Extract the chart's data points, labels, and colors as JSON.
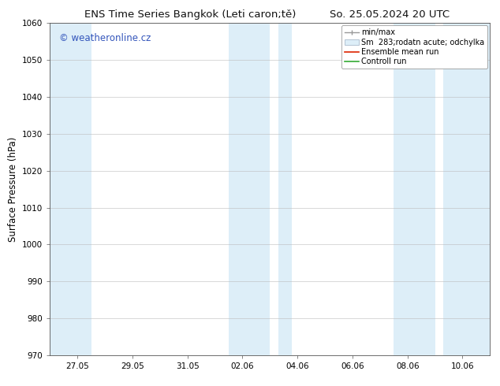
{
  "title_left": "ENS Time Series Bangkok (Leti caron;tě)",
  "title_right": "So. 25.05.2024 20 UTC",
  "ylabel": "Surface Pressure (hPa)",
  "ylim": [
    970,
    1060
  ],
  "yticks": [
    970,
    980,
    990,
    1000,
    1010,
    1020,
    1030,
    1040,
    1050,
    1060
  ],
  "xtick_labels": [
    "27.05",
    "29.05",
    "31.05",
    "02.06",
    "04.06",
    "06.06",
    "08.06",
    "10.06"
  ],
  "xtick_positions": [
    1,
    3,
    5,
    7,
    9,
    11,
    13,
    15
  ],
  "xmin": 0,
  "xmax": 16,
  "shaded_bands": [
    {
      "x_start": 0,
      "x_end": 1.5
    },
    {
      "x_start": 6.5,
      "x_end": 8.0
    },
    {
      "x_start": 8.3,
      "x_end": 8.8
    },
    {
      "x_start": 12.5,
      "x_end": 14.0
    },
    {
      "x_start": 14.3,
      "x_end": 16.0
    }
  ],
  "shaded_color": "#ddeef8",
  "watermark_text": "© weatheronline.cz",
  "watermark_color": "#3355bb",
  "legend_labels": [
    "min/max",
    "Sm  283;rodatn acute; odchylka",
    "Ensemble mean run",
    "Controll run"
  ],
  "background_color": "#ffffff",
  "plot_bg_color": "#ffffff",
  "grid_color": "#bbbbbb",
  "spine_color": "#555555",
  "font_size_title": 9.5,
  "font_size_labels": 8.5,
  "font_size_ticks": 7.5,
  "font_size_legend": 7.0,
  "font_size_watermark": 8.5
}
